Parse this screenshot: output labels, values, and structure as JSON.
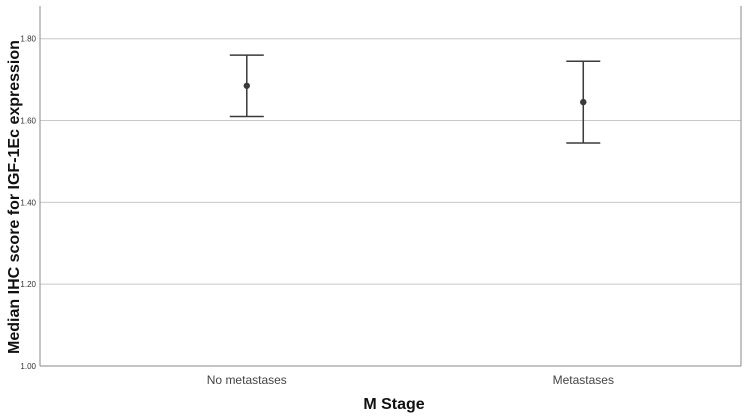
{
  "chart_data": {
    "type": "errorbar",
    "xlabel": "M Stage",
    "ylabel": "Median IHC score for IGF-1Ec expression",
    "categories": [
      "No metastases",
      "Metastases"
    ],
    "y_ticks": [
      "1.00",
      "1.20",
      "1.40",
      "1.60",
      "1.80"
    ],
    "ylim": [
      1.0,
      1.88
    ],
    "grid": "horizontal",
    "series": [
      {
        "means": [
          1.685,
          1.645
        ],
        "lower": [
          1.61,
          1.545
        ],
        "upper": [
          1.76,
          1.745
        ]
      }
    ]
  },
  "colors": {
    "grid": "#c8c8c8",
    "axis": "#8a8a8a",
    "marker": "#3a3a3a"
  }
}
